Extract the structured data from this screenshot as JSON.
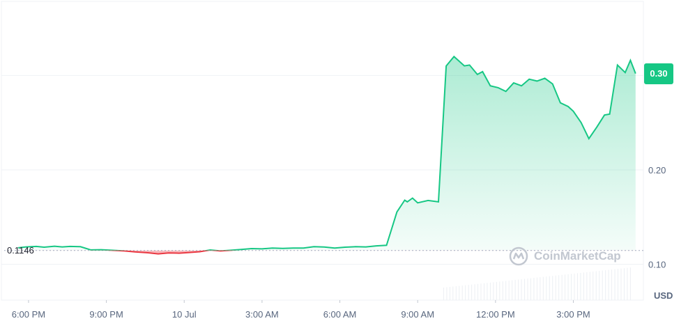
{
  "currency": "USD",
  "current_price_label": "0.30",
  "baseline_label": "0.1146",
  "watermark": "CoinMarketCap",
  "colors": {
    "up": "#16c784",
    "down": "#ea3943",
    "grid": "#eff2f5",
    "text": "#58667e"
  },
  "chart_data": {
    "type": "area",
    "baseline": 0.1146,
    "ylim": [
      0.062,
      0.38
    ],
    "yticks": [
      0.1,
      0.2,
      0.3
    ],
    "ytick_labels": [
      "0.10",
      "0.20",
      "0.30"
    ],
    "xlim": [
      -1.1,
      23.7
    ],
    "xticks": [
      0,
      3,
      6,
      9,
      12,
      15,
      18,
      21
    ],
    "xtick_labels": [
      "6:00 PM",
      "9:00 PM",
      "10 Jul",
      "3:00 AM",
      "6:00 AM",
      "9:00 AM",
      "12:00 PM",
      "3:00 PM"
    ],
    "series": [
      {
        "x": [
          -0.4,
          -0.1,
          0.3,
          0.6,
          1.0,
          1.3,
          1.6,
          2.0,
          2.4,
          2.8,
          3.2,
          3.7,
          4.1,
          4.6,
          5.0,
          5.4,
          5.8,
          6.2,
          6.6,
          7.0,
          7.4,
          7.8,
          8.2,
          8.6,
          9.0,
          9.4,
          9.8,
          10.2,
          10.6,
          11.0,
          11.4,
          11.8,
          12.2,
          12.6,
          13.0,
          13.4,
          13.8,
          14.2,
          14.5,
          14.6,
          14.8,
          15.0,
          15.4,
          15.8,
          16.1,
          16.4,
          16.8,
          17.0,
          17.3,
          17.5,
          17.8,
          18.1,
          18.4,
          18.7,
          19.0,
          19.3,
          19.6,
          19.9,
          20.2,
          20.5,
          20.8,
          21.0,
          21.3,
          21.6,
          21.9,
          22.2,
          22.4,
          22.7,
          23.0,
          23.2,
          23.4
        ],
        "y": [
          0.1174,
          0.1184,
          0.1189,
          0.1181,
          0.1191,
          0.1184,
          0.1189,
          0.1186,
          0.1152,
          0.1154,
          0.1148,
          0.1141,
          0.1131,
          0.1122,
          0.111,
          0.112,
          0.1117,
          0.1125,
          0.1133,
          0.1151,
          0.1141,
          0.1148,
          0.1157,
          0.1166,
          0.1163,
          0.1172,
          0.1168,
          0.1171,
          0.1172,
          0.1186,
          0.1183,
          0.1171,
          0.1181,
          0.1186,
          0.1184,
          0.1195,
          0.1201,
          0.1554,
          0.1679,
          0.1661,
          0.1701,
          0.1651,
          0.1676,
          0.1661,
          0.3101,
          0.3201,
          0.3102,
          0.3111,
          0.3011,
          0.3041,
          0.2891,
          0.2871,
          0.2831,
          0.2921,
          0.2891,
          0.2961,
          0.2941,
          0.2971,
          0.2911,
          0.2711,
          0.2671,
          0.2621,
          0.2501,
          0.2331,
          0.2451,
          0.2581,
          0.2591,
          0.3111,
          0.3031,
          0.3161,
          0.3021
        ]
      }
    ]
  }
}
